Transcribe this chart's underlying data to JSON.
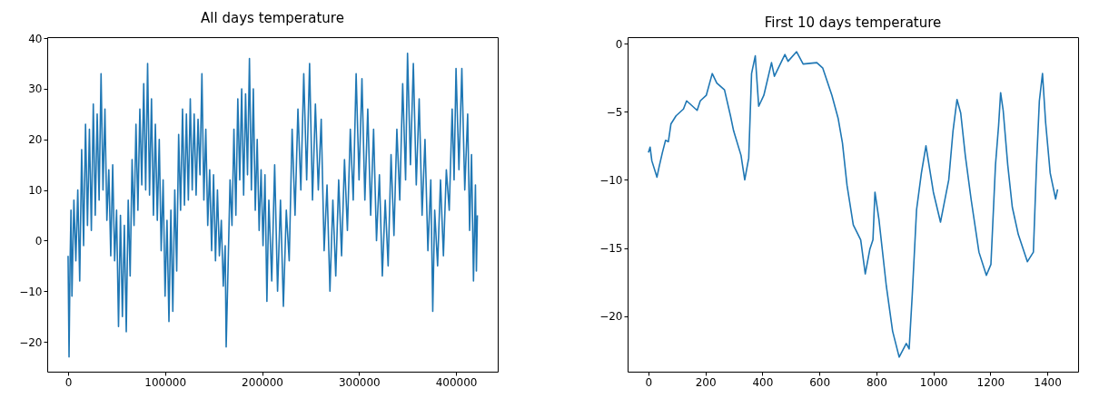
{
  "chart_data": [
    {
      "type": "line",
      "title": "All days temperature",
      "xlim": [
        -21500,
        443000
      ],
      "ylim": [
        -25.9,
        40.2
      ],
      "xticks": [
        0,
        100000,
        200000,
        300000,
        400000
      ],
      "yticks": [
        -20,
        -10,
        0,
        10,
        20,
        30,
        40
      ],
      "grid": false,
      "series": [
        {
          "color": "#1f77b4",
          "x": [
            0,
            1000,
            2000,
            3000,
            4000,
            6000,
            8000,
            10000,
            12000,
            14000,
            16000,
            18000,
            20000,
            22000,
            24000,
            26000,
            28000,
            30000,
            32000,
            34000,
            36000,
            38000,
            40000,
            42000,
            44000,
            46000,
            48000,
            50000,
            52000,
            54000,
            56000,
            58000,
            60000,
            62000,
            64000,
            66000,
            68000,
            70000,
            72000,
            74000,
            76000,
            78000,
            80000,
            82000,
            84000,
            86000,
            88000,
            90000,
            92000,
            94000,
            96000,
            98000,
            100000,
            102000,
            104000,
            106000,
            108000,
            110000,
            112000,
            114000,
            116000,
            118000,
            120000,
            122000,
            124000,
            126000,
            128000,
            130000,
            132000,
            134000,
            136000,
            138000,
            140000,
            142000,
            144000,
            146000,
            148000,
            150000,
            152000,
            154000,
            156000,
            158000,
            160000,
            162000,
            163000,
            165000,
            167000,
            169000,
            171000,
            173000,
            175000,
            177000,
            179000,
            181000,
            183000,
            185000,
            187000,
            189000,
            191000,
            193000,
            195000,
            197000,
            199000,
            201000,
            203000,
            205000,
            207000,
            210000,
            213000,
            216000,
            219000,
            222000,
            225000,
            228000,
            231000,
            234000,
            237000,
            240000,
            243000,
            246000,
            249000,
            252000,
            255000,
            258000,
            261000,
            264000,
            267000,
            270000,
            273000,
            276000,
            279000,
            282000,
            285000,
            288000,
            291000,
            294000,
            297000,
            300000,
            303000,
            306000,
            309000,
            312000,
            315000,
            318000,
            321000,
            324000,
            327000,
            330000,
            333000,
            336000,
            339000,
            342000,
            345000,
            348000,
            350000,
            353000,
            356000,
            359000,
            362000,
            365000,
            368000,
            371000,
            374000,
            376000,
            378000,
            381000,
            384000,
            387000,
            390000,
            393000,
            396000,
            398000,
            400000,
            403000,
            406000,
            409000,
            412000,
            414000,
            416000,
            418000,
            420000,
            421000,
            422000
          ],
          "values": [
            -3,
            -23,
            -5,
            6,
            -11,
            8,
            -4,
            10,
            -8,
            18,
            -1,
            23,
            3,
            22,
            2,
            27,
            5,
            25,
            8,
            33,
            10,
            26,
            4,
            14,
            -3,
            15,
            -4,
            6,
            -17,
            5,
            -15,
            3,
            -18,
            8,
            -7,
            16,
            3,
            23,
            6,
            26,
            11,
            31,
            10,
            35,
            9,
            28,
            5,
            23,
            4,
            20,
            -2,
            12,
            -11,
            4,
            -16,
            6,
            -14,
            10,
            -6,
            21,
            6,
            26,
            7,
            25,
            8,
            28,
            10,
            25,
            9,
            24,
            13,
            33,
            8,
            22,
            3,
            14,
            -2,
            13,
            -4,
            10,
            -3,
            4,
            -9,
            -1,
            -21,
            -5,
            12,
            3,
            22,
            5,
            28,
            12,
            30,
            9,
            29,
            13,
            36,
            10,
            30,
            6,
            20,
            2,
            14,
            -1,
            13,
            -12,
            8,
            -8,
            15,
            -10,
            8,
            -13,
            6,
            -4,
            22,
            5,
            26,
            10,
            33,
            12,
            35,
            8,
            27,
            10,
            24,
            -2,
            11,
            -10,
            8,
            -7,
            12,
            -3,
            16,
            2,
            22,
            8,
            33,
            12,
            32,
            8,
            26,
            5,
            22,
            0,
            13,
            -7,
            8,
            -5,
            17,
            1,
            22,
            8,
            31,
            12,
            37,
            15,
            35,
            11,
            28,
            5,
            20,
            -2,
            12,
            -14,
            6,
            -5,
            12,
            -3,
            14,
            6,
            26,
            12,
            34,
            14,
            34,
            10,
            25,
            2,
            17,
            -8,
            11,
            -6,
            5
          ]
        }
      ]
    },
    {
      "type": "line",
      "title": "First 10 days temperature",
      "xlim": [
        -73,
        1508
      ],
      "ylim": [
        -24.07,
        0.47
      ],
      "xticks": [
        0,
        200,
        400,
        600,
        800,
        1000,
        1200,
        1400
      ],
      "yticks": [
        -20,
        -15,
        -10,
        -5,
        0
      ],
      "grid": false,
      "series": [
        {
          "color": "#1f77b4",
          "x": [
            0,
            6,
            12,
            30,
            38,
            49,
            60,
            70,
            79,
            97,
            123,
            134,
            171,
            182,
            203,
            224,
            240,
            267,
            288,
            299,
            325,
            338,
            352,
            362,
            375,
            387,
            405,
            432,
            442,
            479,
            490,
            520,
            543,
            591,
            612,
            644,
            666,
            681,
            697,
            719,
            745,
            761,
            777,
            788,
            795,
            809,
            835,
            857,
            880,
            905,
            915,
            926,
            941,
            958,
            974,
            1000,
            1025,
            1054,
            1069,
            1083,
            1096,
            1112,
            1133,
            1160,
            1186,
            1202,
            1218,
            1229,
            1236,
            1245,
            1261,
            1277,
            1298,
            1330,
            1351,
            1362,
            1372,
            1383,
            1394,
            1410,
            1429,
            1436
          ],
          "values": [
            -8.0,
            -7.6,
            -8.6,
            -9.8,
            -9.0,
            -8.0,
            -7.1,
            -7.2,
            -5.9,
            -5.3,
            -4.8,
            -4.2,
            -4.9,
            -4.2,
            -3.8,
            -2.2,
            -2.9,
            -3.4,
            -5.3,
            -6.4,
            -8.2,
            -10.0,
            -8.4,
            -2.2,
            -0.9,
            -4.6,
            -3.8,
            -1.4,
            -2.4,
            -0.8,
            -1.3,
            -0.6,
            -1.5,
            -1.4,
            -1.8,
            -3.8,
            -5.5,
            -7.3,
            -10.4,
            -13.3,
            -14.4,
            -16.9,
            -15.1,
            -14.4,
            -10.9,
            -12.9,
            -17.8,
            -21.1,
            -23.0,
            -22.0,
            -22.4,
            -18.4,
            -12.2,
            -9.5,
            -7.5,
            -10.9,
            -13.1,
            -10.0,
            -6.4,
            -4.1,
            -5.1,
            -8.2,
            -11.5,
            -15.3,
            -17.0,
            -16.2,
            -8.9,
            -6.0,
            -3.6,
            -4.9,
            -8.9,
            -12.0,
            -14.0,
            -16.0,
            -15.3,
            -8.9,
            -4.2,
            -2.2,
            -5.8,
            -9.5,
            -11.4,
            -10.7
          ]
        }
      ]
    }
  ]
}
